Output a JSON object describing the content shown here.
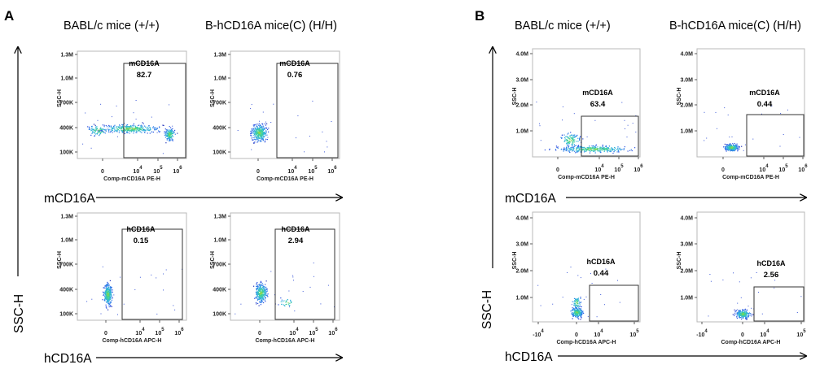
{
  "figure": {
    "panels": [
      {
        "label": "A",
        "column_titles": [
          "BABL/c mice (+/+)",
          "B-hCD16A mice(C) (H/H)"
        ],
        "x_arrow_labels": [
          "mCD16A",
          "hCD16A"
        ],
        "y_arrow_label": "SSC-H",
        "rows": [
          {
            "xaxis_label": "Comp-mCD16A PE-H",
            "yaxis_label": "SSC-H",
            "y_ticks": [
              "1.3M",
              "1.0M",
              "700K",
              "400K",
              "100K"
            ],
            "x_ticks": [
              {
                "base": "0"
              },
              {
                "base": "10",
                "exp": "4"
              },
              {
                "base": "10",
                "exp": "5"
              },
              {
                "base": "10",
                "exp": "6"
              }
            ]
          },
          {
            "xaxis_label": "Comp-hCD16A APC-H",
            "yaxis_label": "SSC-H",
            "y_ticks": [
              "1.3M",
              "1.0M",
              "700K",
              "400K",
              "100K"
            ],
            "x_ticks": [
              {
                "base": "0"
              },
              {
                "base": "10",
                "exp": "4"
              },
              {
                "base": "10",
                "exp": "5"
              },
              {
                "base": "10",
                "exp": "6"
              }
            ]
          }
        ]
      },
      {
        "label": "B",
        "column_titles": [
          "BABL/c mice (+/+)",
          "B-hCD16A mice(C) (H/H)"
        ],
        "x_arrow_labels": [
          "mCD16A",
          "hCD16A"
        ],
        "y_arrow_label": "SSC-H",
        "rows": [
          {
            "xaxis_label": "Comp-mCD16A PE-H",
            "yaxis_label": "SSC-H",
            "y_ticks": [
              "4.0M",
              "3.0M",
              "2.0M",
              "1.0M"
            ],
            "x_ticks": [
              {
                "base": "0"
              },
              {
                "base": "10",
                "exp": "4"
              },
              {
                "base": "10",
                "exp": "5"
              },
              {
                "base": "10",
                "exp": "6"
              }
            ]
          },
          {
            "xaxis_label": "Comp-hCD16A APC-H",
            "yaxis_label": "SSC-H",
            "y_ticks": [
              "4.0M",
              "3.0M",
              "2.0M",
              "1.0M"
            ],
            "x_ticks": [
              {
                "base": "-10",
                "exp": "4"
              },
              {
                "base": "0"
              },
              {
                "base": "10",
                "exp": "4"
              },
              {
                "base": "10",
                "exp": "5"
              }
            ]
          }
        ]
      }
    ]
  },
  "chart_data": [
    {
      "type": "scatter",
      "panel": "A",
      "group": "BABL/c mice (+/+)",
      "marker": "mCD16A",
      "x_label": "Comp-mCD16A PE-H",
      "y_label": "SSC-H",
      "gate": {
        "name": "mCD16A",
        "percent": "82.7"
      }
    },
    {
      "type": "scatter",
      "panel": "A",
      "group": "B-hCD16A mice(C) (H/H)",
      "marker": "mCD16A",
      "x_label": "Comp-mCD16A PE-H",
      "y_label": "SSC-H",
      "gate": {
        "name": "mCD16A",
        "percent": "0.76"
      }
    },
    {
      "type": "scatter",
      "panel": "A",
      "group": "BABL/c mice (+/+)",
      "marker": "hCD16A",
      "x_label": "Comp-hCD16A APC-H",
      "y_label": "SSC-H",
      "gate": {
        "name": "hCD16A",
        "percent": "0.15"
      }
    },
    {
      "type": "scatter",
      "panel": "A",
      "group": "B-hCD16A mice(C) (H/H)",
      "marker": "hCD16A",
      "x_label": "Comp-hCD16A APC-H",
      "y_label": "SSC-H",
      "gate": {
        "name": "hCD16A",
        "percent": "2.94"
      }
    },
    {
      "type": "scatter",
      "panel": "B",
      "group": "BABL/c mice (+/+)",
      "marker": "mCD16A",
      "x_label": "Comp-mCD16A PE-H",
      "y_label": "SSC-H",
      "gate": {
        "name": "mCD16A",
        "percent": "63.4"
      }
    },
    {
      "type": "scatter",
      "panel": "B",
      "group": "B-hCD16A mice(C) (H/H)",
      "marker": "mCD16A",
      "x_label": "Comp-mCD16A PE-H",
      "y_label": "SSC-H",
      "gate": {
        "name": "mCD16A",
        "percent": "0.44"
      }
    },
    {
      "type": "scatter",
      "panel": "B",
      "group": "BABL/c mice (+/+)",
      "marker": "hCD16A",
      "x_label": "Comp-hCD16A APC-H",
      "y_label": "SSC-H",
      "gate": {
        "name": "hCD16A",
        "percent": "0.44"
      }
    },
    {
      "type": "scatter",
      "panel": "B",
      "group": "B-hCD16A mice(C) (H/H)",
      "marker": "hCD16A",
      "x_label": "Comp-hCD16A APC-H",
      "y_label": "SSC-H",
      "gate": {
        "name": "hCD16A",
        "percent": "2.56"
      }
    }
  ]
}
